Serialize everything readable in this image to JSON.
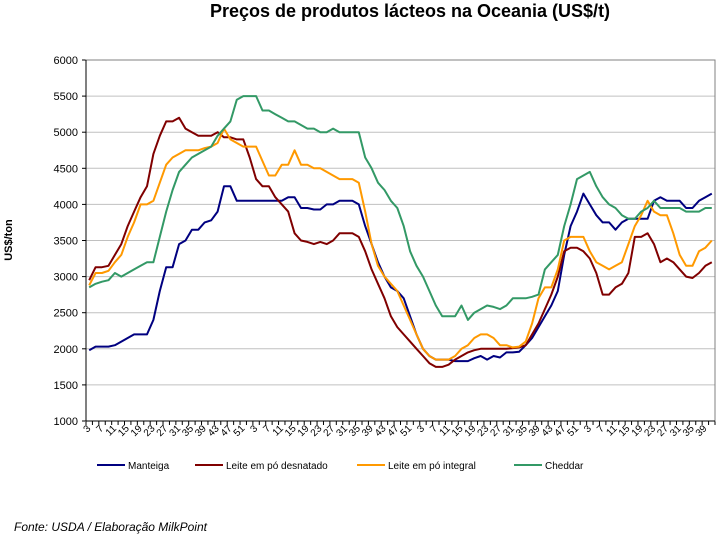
{
  "chart_data": {
    "type": "line",
    "title": "Preços de produtos lácteos na Oceania (US$/t)",
    "xlabel": "",
    "ylabel": "US$/ton",
    "ylim": [
      1000,
      6000
    ],
    "yticks": [
      1000,
      1500,
      2000,
      2500,
      3000,
      3500,
      4000,
      4500,
      5000,
      5500,
      6000
    ],
    "grid": true,
    "legend_position": "bottom",
    "xtick_labels": [
      "3",
      "7",
      "11",
      "15",
      "19",
      "23",
      "27",
      "31",
      "35",
      "39",
      "43",
      "47",
      "51",
      "3",
      "7",
      "11",
      "15",
      "19",
      "23",
      "27",
      "31",
      "35",
      "39",
      "43",
      "47",
      "51",
      "3",
      "7",
      "11",
      "15",
      "19",
      "23",
      "27",
      "31",
      "35",
      "39",
      "43",
      "47",
      "51",
      "3",
      "7",
      "11",
      "15",
      "19",
      "23",
      "27",
      "31",
      "35",
      "39"
    ],
    "x_note": "weeks, sampled every 2 weeks",
    "series": [
      {
        "name": "Manteiga",
        "color": "#000080",
        "values": [
          1980,
          2030,
          2030,
          2030,
          2050,
          2100,
          2150,
          2200,
          2200,
          2200,
          2400,
          2800,
          3130,
          3130,
          3450,
          3500,
          3650,
          3650,
          3750,
          3780,
          3900,
          4250,
          4250,
          4050,
          4050,
          4050,
          4050,
          4050,
          4050,
          4050,
          4050,
          4100,
          4100,
          3950,
          3950,
          3930,
          3930,
          4000,
          4000,
          4050,
          4050,
          4050,
          4000,
          3700,
          3450,
          3200,
          3000,
          2850,
          2800,
          2700,
          2450,
          2200,
          2000,
          1900,
          1850,
          1850,
          1850,
          1830,
          1830,
          1830,
          1870,
          1900,
          1850,
          1900,
          1880,
          1950,
          1950,
          1960,
          2050,
          2150,
          2300,
          2450,
          2600,
          2800,
          3300,
          3700,
          3900,
          4150,
          4000,
          3850,
          3750,
          3750,
          3650,
          3750,
          3800,
          3800,
          3800,
          3800,
          4050,
          4100,
          4050,
          4050,
          4050,
          3950,
          3950,
          4050,
          4100,
          4150
        ]
      },
      {
        "name": "Leite em pó desnatado",
        "color": "#800000",
        "values": [
          2950,
          3130,
          3130,
          3150,
          3300,
          3450,
          3700,
          3900,
          4100,
          4250,
          4700,
          4950,
          5150,
          5150,
          5200,
          5050,
          5000,
          4950,
          4950,
          4950,
          5000,
          4930,
          4930,
          4900,
          4900,
          4650,
          4350,
          4250,
          4250,
          4100,
          4000,
          3900,
          3600,
          3500,
          3480,
          3450,
          3480,
          3450,
          3500,
          3600,
          3600,
          3600,
          3550,
          3350,
          3100,
          2900,
          2700,
          2450,
          2300,
          2200,
          2100,
          2000,
          1900,
          1800,
          1750,
          1750,
          1780,
          1850,
          1900,
          1950,
          1980,
          2000,
          2000,
          2000,
          2000,
          2000,
          2010,
          2020,
          2050,
          2200,
          2350,
          2550,
          2750,
          3000,
          3350,
          3400,
          3400,
          3350,
          3250,
          3050,
          2750,
          2750,
          2850,
          2900,
          3050,
          3550,
          3550,
          3600,
          3450,
          3200,
          3250,
          3200,
          3100,
          3000,
          2980,
          3050,
          3150,
          3200
        ]
      },
      {
        "name": "Leite em pó integral",
        "color": "#FF9900",
        "values": [
          2880,
          3050,
          3050,
          3080,
          3200,
          3300,
          3550,
          3750,
          4000,
          4000,
          4050,
          4300,
          4550,
          4650,
          4700,
          4750,
          4750,
          4750,
          4780,
          4800,
          4850,
          5050,
          4900,
          4850,
          4800,
          4800,
          4800,
          4600,
          4400,
          4400,
          4550,
          4550,
          4750,
          4550,
          4550,
          4500,
          4500,
          4450,
          4400,
          4350,
          4350,
          4350,
          4300,
          3900,
          3450,
          3150,
          3000,
          2900,
          2800,
          2600,
          2400,
          2200,
          2000,
          1900,
          1850,
          1850,
          1850,
          1900,
          2000,
          2050,
          2150,
          2200,
          2200,
          2150,
          2050,
          2050,
          2020,
          2030,
          2100,
          2350,
          2700,
          2850,
          2850,
          3100,
          3500,
          3550,
          3550,
          3550,
          3350,
          3200,
          3150,
          3100,
          3150,
          3200,
          3450,
          3700,
          3850,
          4050,
          3900,
          3850,
          3850,
          3600,
          3300,
          3150,
          3150,
          3350,
          3400,
          3500
        ]
      },
      {
        "name": "Cheddar",
        "color": "#339966",
        "values": [
          2850,
          2900,
          2930,
          2950,
          3050,
          3000,
          3050,
          3100,
          3150,
          3200,
          3200,
          3550,
          3900,
          4200,
          4450,
          4550,
          4650,
          4700,
          4750,
          4800,
          4950,
          5050,
          5150,
          5450,
          5500,
          5500,
          5500,
          5300,
          5300,
          5250,
          5200,
          5150,
          5150,
          5100,
          5050,
          5050,
          5000,
          5000,
          5050,
          5000,
          5000,
          5000,
          5000,
          4650,
          4500,
          4300,
          4200,
          4050,
          3950,
          3700,
          3350,
          3150,
          3000,
          2800,
          2600,
          2450,
          2450,
          2450,
          2600,
          2400,
          2500,
          2550,
          2600,
          2580,
          2550,
          2600,
          2700,
          2700,
          2700,
          2720,
          2750,
          3100,
          3200,
          3300,
          3700,
          4000,
          4350,
          4400,
          4450,
          4250,
          4100,
          4000,
          3950,
          3850,
          3800,
          3800,
          3900,
          3950,
          4050,
          3950,
          3950,
          3950,
          3950,
          3900,
          3900,
          3900,
          3950,
          3950
        ]
      }
    ]
  },
  "source_note": "Fonte: USDA / Elaboração MilkPoint"
}
